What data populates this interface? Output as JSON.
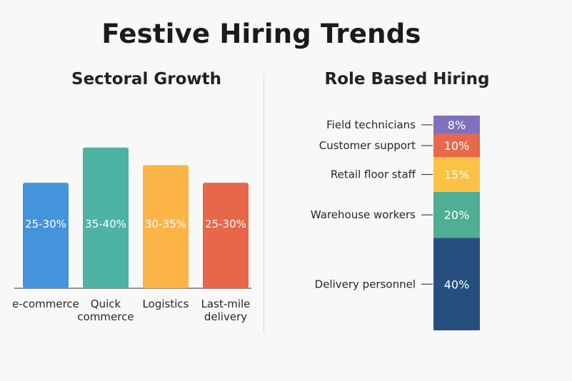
{
  "title": "Festive Hiring Trends",
  "chart_data": [
    {
      "type": "bar",
      "title": "Sectoral Growth",
      "categories": [
        [
          "e-commerce"
        ],
        [
          "Quick",
          "commerce"
        ],
        [
          "Logistics"
        ],
        [
          "Last-mile",
          "delivery"
        ]
      ],
      "values": [
        [
          25,
          30
        ],
        [
          35,
          40
        ],
        [
          30,
          35
        ],
        [
          25,
          30
        ]
      ],
      "value_labels": [
        "25-30%",
        "35-40%",
        "30-35%",
        "25-30%"
      ],
      "colors": [
        "#4394db",
        "#4fb3a4",
        "#fbb446",
        "#e8664a"
      ],
      "ylim": [
        0,
        45
      ],
      "grid": false
    },
    {
      "type": "bar",
      "subtype": "stacked",
      "title": "Role Based Hiring",
      "categories": [
        "Delivery personnel",
        "Warehouse workers",
        "Retail floor staff",
        "Customer support",
        "Field technicians"
      ],
      "values": [
        40,
        20,
        15,
        10,
        8
      ],
      "value_labels": [
        "40%",
        "20%",
        "15%",
        "10%",
        "8%"
      ],
      "colors": [
        "#274f7d",
        "#4fae94",
        "#fbc245",
        "#e7684a",
        "#8070bd"
      ]
    }
  ]
}
